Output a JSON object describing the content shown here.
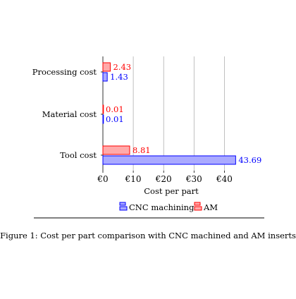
{
  "chart_data": {
    "type": "bar",
    "orientation": "horizontal",
    "categories": [
      "Processing cost",
      "Material cost",
      "Tool cost"
    ],
    "series": [
      {
        "name": "CNC machining",
        "values": [
          1.43,
          0.01,
          43.69
        ],
        "color": "#0000ff",
        "fill": "#aaaaff"
      },
      {
        "name": "AM",
        "values": [
          2.43,
          0.01,
          8.81
        ],
        "color": "#ff0000",
        "fill": "#ffaaaa"
      }
    ],
    "data_labels": {
      "CNC machining": [
        "1.43",
        "0.01",
        "43.69"
      ],
      "AM": [
        "2.43",
        "0.01",
        "8.81"
      ]
    },
    "xlabel": "Cost per part",
    "ylabel": "",
    "xlim": [
      0,
      45
    ],
    "xticks": [
      0,
      10,
      20,
      30,
      40
    ],
    "xtick_labels": [
      "€0",
      "€10",
      "€20",
      "€30",
      "€40"
    ],
    "grid": "vertical major",
    "legend_placement": "bottom-center"
  },
  "figure": {
    "caption": "Figure 1: Cost per part comparison with CNC machined and AM inserts"
  }
}
